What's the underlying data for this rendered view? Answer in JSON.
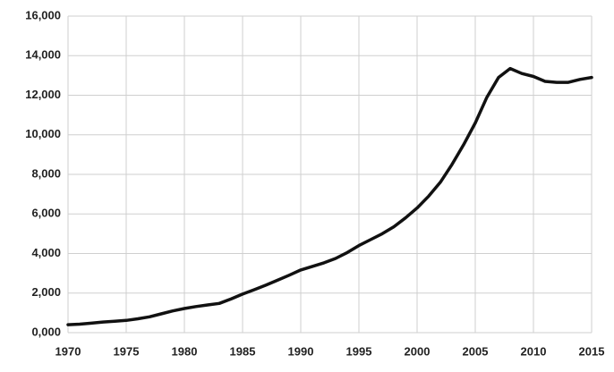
{
  "chart_data": {
    "type": "line",
    "x": [
      1970,
      1971,
      1972,
      1973,
      1974,
      1975,
      1976,
      1977,
      1978,
      1979,
      1980,
      1981,
      1982,
      1983,
      1984,
      1985,
      1986,
      1987,
      1988,
      1989,
      1990,
      1991,
      1992,
      1993,
      1994,
      1995,
      1996,
      1997,
      1998,
      1999,
      2000,
      2001,
      2002,
      2003,
      2004,
      2005,
      2006,
      2007,
      2008,
      2009,
      2010,
      2011,
      2012,
      2013,
      2014,
      2015
    ],
    "values": [
      400,
      430,
      480,
      540,
      580,
      620,
      700,
      800,
      950,
      1100,
      1220,
      1320,
      1400,
      1480,
      1700,
      1950,
      2170,
      2400,
      2650,
      2900,
      3170,
      3350,
      3530,
      3750,
      4050,
      4400,
      4700,
      5000,
      5350,
      5800,
      6300,
      6900,
      7600,
      8500,
      9500,
      10600,
      11900,
      12900,
      13350,
      13100,
      12950,
      12700,
      12650,
      12650,
      12800,
      12900
    ],
    "color": "#111111",
    "xlim": [
      1970,
      2015
    ],
    "xticks": [
      1970,
      1975,
      1980,
      1985,
      1990,
      1995,
      2000,
      2005,
      2010,
      2015
    ],
    "ylim": [
      0,
      16000
    ],
    "yticks": [
      {
        "value": 0,
        "label": "0,000"
      },
      {
        "value": 2000,
        "label": "2,000"
      },
      {
        "value": 4000,
        "label": "4,000"
      },
      {
        "value": 6000,
        "label": "6,000"
      },
      {
        "value": 8000,
        "label": "8,000"
      },
      {
        "value": 10000,
        "label": "10,000"
      },
      {
        "value": 12000,
        "label": "12,000"
      },
      {
        "value": 14000,
        "label": "14,000"
      },
      {
        "value": 16000,
        "label": "16,000"
      }
    ],
    "grid": true
  }
}
